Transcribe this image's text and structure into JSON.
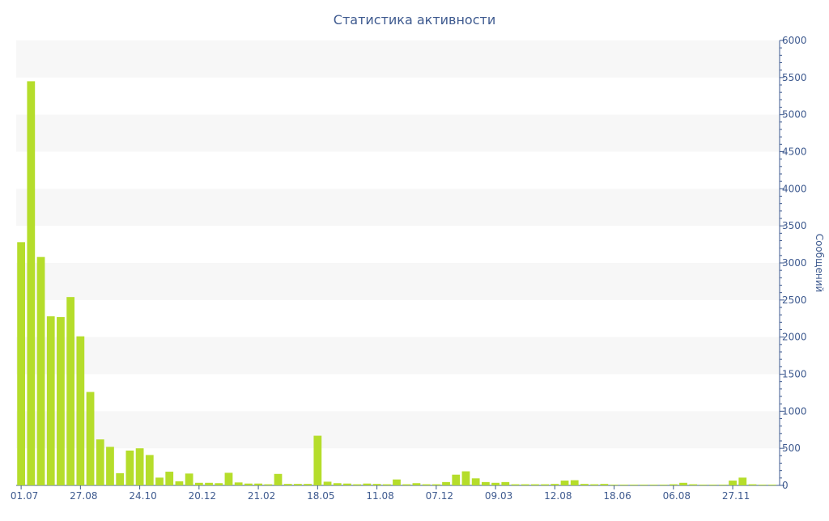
{
  "chart_data": {
    "type": "bar",
    "title": "Статистика активности",
    "y_axis_label": "Сообщений",
    "categories": [
      "01.07",
      null,
      null,
      null,
      null,
      null,
      "27.08",
      null,
      null,
      null,
      null,
      null,
      "24.10",
      null,
      null,
      null,
      null,
      null,
      "20.12",
      null,
      null,
      null,
      null,
      null,
      "21.02",
      null,
      null,
      null,
      null,
      null,
      "18.05",
      null,
      null,
      null,
      null,
      null,
      "11.08",
      null,
      null,
      null,
      null,
      null,
      "07.12",
      null,
      null,
      null,
      null,
      null,
      "09.03",
      null,
      null,
      null,
      null,
      null,
      "12.08",
      null,
      null,
      null,
      null,
      null,
      "18.06",
      null,
      null,
      null,
      null,
      null,
      "06.08",
      null,
      null,
      null,
      null,
      null,
      "27.11",
      null,
      null,
      null,
      null
    ],
    "values": [
      3280,
      5450,
      3080,
      2280,
      2270,
      2540,
      2010,
      1260,
      620,
      520,
      165,
      470,
      500,
      410,
      105,
      185,
      55,
      160,
      35,
      35,
      30,
      170,
      40,
      25,
      25,
      15,
      155,
      20,
      20,
      20,
      670,
      50,
      30,
      25,
      15,
      25,
      20,
      15,
      80,
      15,
      30,
      15,
      15,
      45,
      145,
      190,
      95,
      45,
      35,
      45,
      15,
      15,
      15,
      15,
      20,
      65,
      70,
      20,
      15,
      20,
      10,
      10,
      10,
      10,
      10,
      10,
      15,
      35,
      15,
      10,
      10,
      10,
      65,
      105,
      15,
      10,
      10
    ],
    "color": "#b5dd2b",
    "ylim": [
      0,
      6000
    ],
    "yticks": [
      0,
      500,
      1000,
      1500,
      2000,
      2500,
      3000,
      3500,
      4000,
      4500,
      5000,
      5500,
      6000
    ],
    "grid": "bands"
  }
}
